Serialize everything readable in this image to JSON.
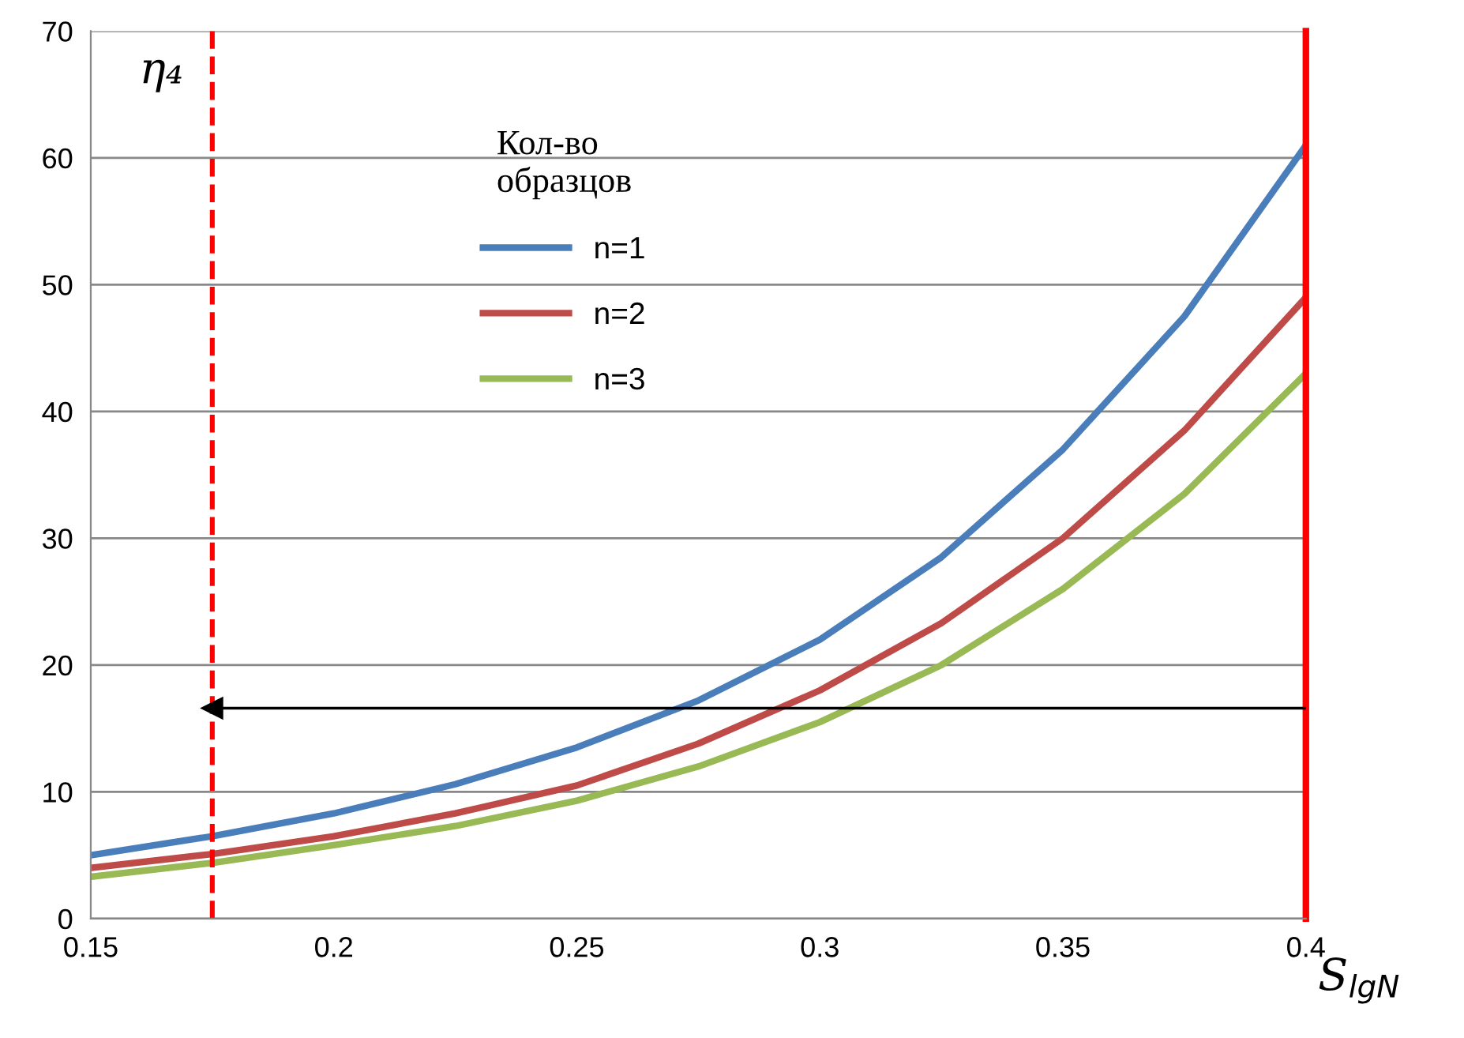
{
  "chart_data": {
    "type": "line",
    "xlabel": "S$_{lgN}$",
    "ylabel": "η₄",
    "legend_title": "Кол-во\nобразцов",
    "x": [
      0.15,
      0.175,
      0.2,
      0.225,
      0.25,
      0.275,
      0.3,
      0.325,
      0.35,
      0.375,
      0.4
    ],
    "series": [
      {
        "name": "n=1",
        "color": "#4a7ebb",
        "values": [
          5,
          6.5,
          8.3,
          10.6,
          13.5,
          17.2,
          22,
          28.5,
          37,
          47.5,
          61
        ]
      },
      {
        "name": "n=2",
        "color": "#be4b48",
        "values": [
          4,
          5.1,
          6.5,
          8.3,
          10.5,
          13.8,
          18,
          23.3,
          30,
          38.5,
          49
        ]
      },
      {
        "name": "n=3",
        "color": "#98b954",
        "values": [
          3.3,
          4.4,
          5.8,
          7.3,
          9.3,
          12,
          15.5,
          20,
          26,
          33.5,
          43
        ]
      }
    ],
    "xlim": [
      0.15,
      0.4
    ],
    "xticks": [
      0.15,
      0.2,
      0.25,
      0.3,
      0.35,
      0.4
    ],
    "ylim": [
      0,
      70
    ],
    "yticks": [
      0,
      10,
      20,
      30,
      40,
      50,
      60,
      70
    ],
    "ref_lines": [
      {
        "axis": "x",
        "value": 0.175,
        "color": "#ff0000",
        "line_style": "dashed"
      },
      {
        "axis": "x",
        "value": 0.4,
        "color": "#ff0000",
        "line_style": "solid"
      },
      {
        "axis": "y",
        "value": 16.6,
        "color": "#000000",
        "line_style": "solid"
      }
    ],
    "grid": "y",
    "legend": "top center",
    "line_style": "solid",
    "marker": "none"
  }
}
